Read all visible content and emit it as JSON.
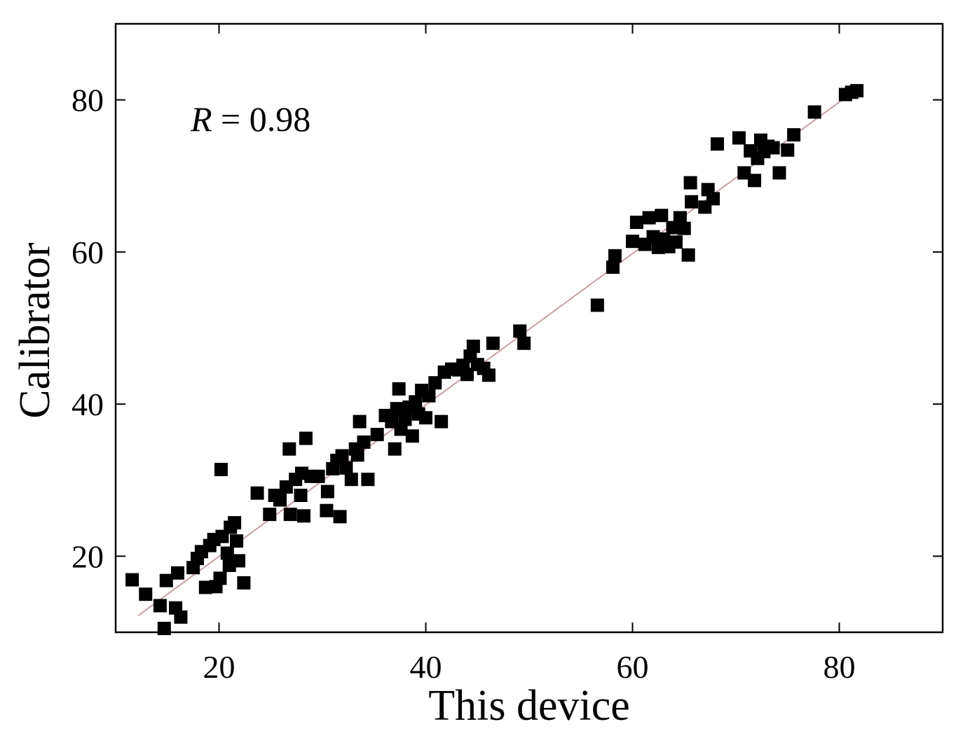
{
  "chart_data": {
    "type": "scatter",
    "xlabel": "This device",
    "ylabel": "Calibrator",
    "xlim": [
      10,
      90
    ],
    "ylim": [
      10,
      90
    ],
    "x_ticks": [
      20,
      40,
      60,
      80
    ],
    "y_ticks": [
      20,
      40,
      60,
      80
    ],
    "x_tick_labels": [
      "20",
      "40",
      "60",
      "80"
    ],
    "y_tick_labels": [
      "20",
      "40",
      "60",
      "80"
    ],
    "grid": false,
    "annotation": {
      "variable": "R",
      "text": " = 0.98"
    },
    "fit_line": {
      "x": [
        12.2,
        81.8
      ],
      "y": [
        12.2,
        81.5
      ],
      "color": "#c9a0a0"
    },
    "marker_color": "#000000",
    "points": [
      {
        "x": 11.6,
        "y": 16.9
      },
      {
        "x": 12.9,
        "y": 15.0
      },
      {
        "x": 14.3,
        "y": 13.5
      },
      {
        "x": 14.9,
        "y": 16.8
      },
      {
        "x": 15.8,
        "y": 13.2
      },
      {
        "x": 16.3,
        "y": 12.0
      },
      {
        "x": 14.7,
        "y": 10.5
      },
      {
        "x": 16.0,
        "y": 17.8
      },
      {
        "x": 17.5,
        "y": 18.5
      },
      {
        "x": 17.9,
        "y": 19.7
      },
      {
        "x": 18.3,
        "y": 20.6
      },
      {
        "x": 18.7,
        "y": 15.9
      },
      {
        "x": 19.1,
        "y": 21.4
      },
      {
        "x": 19.5,
        "y": 22.2
      },
      {
        "x": 19.7,
        "y": 16.0
      },
      {
        "x": 20.1,
        "y": 17.1
      },
      {
        "x": 20.3,
        "y": 22.6
      },
      {
        "x": 20.2,
        "y": 31.4
      },
      {
        "x": 20.8,
        "y": 20.4
      },
      {
        "x": 21.1,
        "y": 23.8
      },
      {
        "x": 21.5,
        "y": 24.4
      },
      {
        "x": 21.0,
        "y": 18.8
      },
      {
        "x": 21.7,
        "y": 22.0
      },
      {
        "x": 21.9,
        "y": 19.4
      },
      {
        "x": 22.4,
        "y": 16.5
      },
      {
        "x": 23.7,
        "y": 28.3
      },
      {
        "x": 24.9,
        "y": 25.5
      },
      {
        "x": 25.4,
        "y": 28.0
      },
      {
        "x": 25.9,
        "y": 27.4
      },
      {
        "x": 26.5,
        "y": 29.1
      },
      {
        "x": 26.9,
        "y": 25.5
      },
      {
        "x": 26.8,
        "y": 34.1
      },
      {
        "x": 27.4,
        "y": 30.1
      },
      {
        "x": 27.9,
        "y": 28.0
      },
      {
        "x": 28.2,
        "y": 25.3
      },
      {
        "x": 28.0,
        "y": 30.9
      },
      {
        "x": 28.4,
        "y": 35.5
      },
      {
        "x": 28.9,
        "y": 30.5
      },
      {
        "x": 29.6,
        "y": 30.5
      },
      {
        "x": 30.4,
        "y": 26.0
      },
      {
        "x": 30.5,
        "y": 28.5
      },
      {
        "x": 31.0,
        "y": 31.5
      },
      {
        "x": 31.4,
        "y": 32.6
      },
      {
        "x": 31.7,
        "y": 25.2
      },
      {
        "x": 31.9,
        "y": 33.2
      },
      {
        "x": 32.3,
        "y": 31.6
      },
      {
        "x": 32.8,
        "y": 30.1
      },
      {
        "x": 33.2,
        "y": 34.1
      },
      {
        "x": 33.4,
        "y": 33.3
      },
      {
        "x": 33.6,
        "y": 37.7
      },
      {
        "x": 34.0,
        "y": 35.0
      },
      {
        "x": 34.4,
        "y": 30.1
      },
      {
        "x": 35.3,
        "y": 36.0
      },
      {
        "x": 36.1,
        "y": 38.5
      },
      {
        "x": 36.7,
        "y": 37.7
      },
      {
        "x": 37.0,
        "y": 34.1
      },
      {
        "x": 37.2,
        "y": 39.4
      },
      {
        "x": 37.4,
        "y": 42.0
      },
      {
        "x": 37.6,
        "y": 36.7
      },
      {
        "x": 38.0,
        "y": 38.0
      },
      {
        "x": 38.4,
        "y": 39.6
      },
      {
        "x": 38.7,
        "y": 35.8
      },
      {
        "x": 39.0,
        "y": 40.3
      },
      {
        "x": 39.3,
        "y": 38.7
      },
      {
        "x": 39.6,
        "y": 41.8
      },
      {
        "x": 40.0,
        "y": 38.2
      },
      {
        "x": 40.3,
        "y": 41.1
      },
      {
        "x": 40.9,
        "y": 42.8
      },
      {
        "x": 41.5,
        "y": 37.7
      },
      {
        "x": 41.8,
        "y": 44.2
      },
      {
        "x": 42.5,
        "y": 44.6
      },
      {
        "x": 43.2,
        "y": 44.5
      },
      {
        "x": 43.6,
        "y": 45.1
      },
      {
        "x": 44.0,
        "y": 43.9
      },
      {
        "x": 44.3,
        "y": 46.3
      },
      {
        "x": 44.6,
        "y": 47.6
      },
      {
        "x": 45.0,
        "y": 45.2
      },
      {
        "x": 45.6,
        "y": 44.7
      },
      {
        "x": 46.1,
        "y": 43.8
      },
      {
        "x": 46.5,
        "y": 48.0
      },
      {
        "x": 49.1,
        "y": 49.6
      },
      {
        "x": 49.5,
        "y": 48.0
      },
      {
        "x": 56.6,
        "y": 53.0
      },
      {
        "x": 58.1,
        "y": 58.0
      },
      {
        "x": 58.3,
        "y": 59.5
      },
      {
        "x": 60.0,
        "y": 61.4
      },
      {
        "x": 60.4,
        "y": 63.9
      },
      {
        "x": 61.2,
        "y": 61.0
      },
      {
        "x": 61.6,
        "y": 64.5
      },
      {
        "x": 62.0,
        "y": 62.0
      },
      {
        "x": 62.5,
        "y": 60.6
      },
      {
        "x": 62.8,
        "y": 64.8
      },
      {
        "x": 63.0,
        "y": 61.7
      },
      {
        "x": 63.5,
        "y": 60.7
      },
      {
        "x": 63.9,
        "y": 63.2
      },
      {
        "x": 64.2,
        "y": 61.3
      },
      {
        "x": 64.6,
        "y": 64.5
      },
      {
        "x": 65.0,
        "y": 63.1
      },
      {
        "x": 65.4,
        "y": 59.6
      },
      {
        "x": 65.6,
        "y": 69.1
      },
      {
        "x": 65.7,
        "y": 66.6
      },
      {
        "x": 67.0,
        "y": 65.9
      },
      {
        "x": 67.3,
        "y": 68.2
      },
      {
        "x": 67.8,
        "y": 67.0
      },
      {
        "x": 68.2,
        "y": 74.2
      },
      {
        "x": 70.3,
        "y": 75.0
      },
      {
        "x": 70.8,
        "y": 70.4
      },
      {
        "x": 71.4,
        "y": 73.3
      },
      {
        "x": 71.8,
        "y": 69.4
      },
      {
        "x": 72.1,
        "y": 72.3
      },
      {
        "x": 72.4,
        "y": 74.7
      },
      {
        "x": 72.7,
        "y": 73.2
      },
      {
        "x": 73.1,
        "y": 73.9
      },
      {
        "x": 73.6,
        "y": 73.7
      },
      {
        "x": 74.2,
        "y": 70.4
      },
      {
        "x": 75.0,
        "y": 73.4
      },
      {
        "x": 75.6,
        "y": 75.4
      },
      {
        "x": 77.6,
        "y": 78.4
      },
      {
        "x": 80.6,
        "y": 80.7
      },
      {
        "x": 81.2,
        "y": 81.0
      },
      {
        "x": 81.7,
        "y": 81.2
      }
    ]
  }
}
